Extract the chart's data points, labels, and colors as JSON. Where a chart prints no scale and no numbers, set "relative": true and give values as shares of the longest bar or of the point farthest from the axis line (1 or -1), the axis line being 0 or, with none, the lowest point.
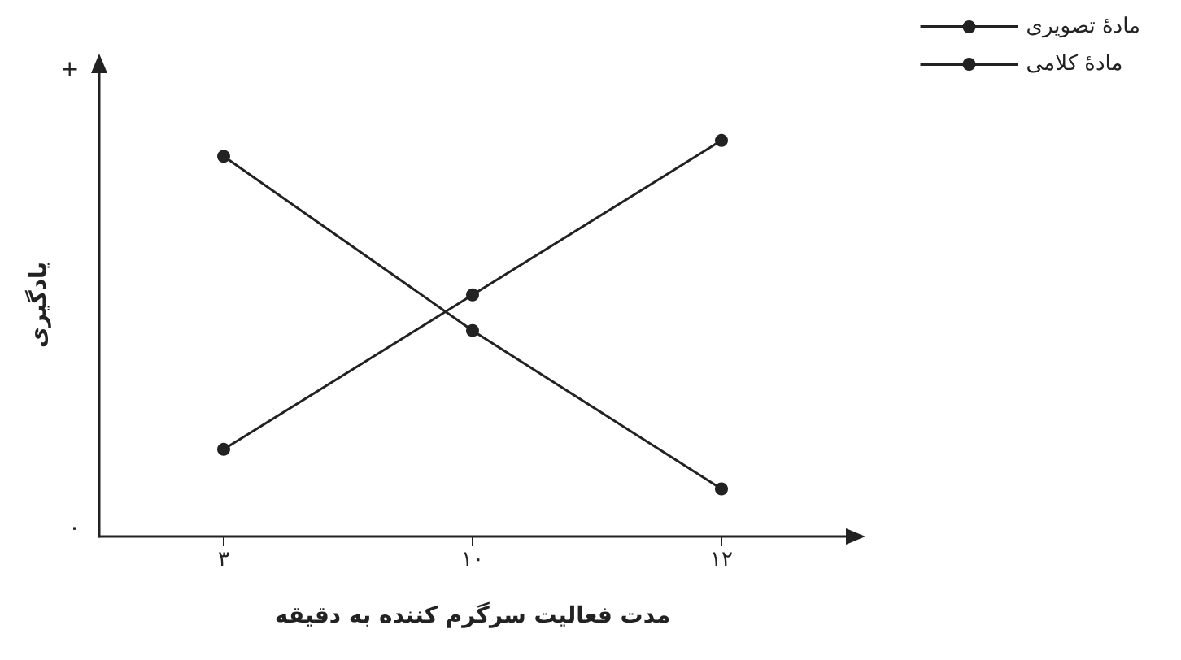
{
  "chart_data": {
    "type": "line",
    "relative": true,
    "xlabel": "مدت فعالیت سرگرم کننده به دقیقه",
    "ylabel": "یادگیری",
    "categories": [
      "۳",
      "۱۰",
      "۱۲"
    ],
    "series": [
      {
        "name": "مادهٔ تصویری",
        "color": "#222222",
        "values": [
          0.22,
          0.61,
          1
        ]
      },
      {
        "name": "مادهٔ کلامی",
        "color": "#222222",
        "values": [
          0.96,
          0.52,
          0.12
        ]
      }
    ],
    "annotations": [
      "+",
      "۰"
    ],
    "marker": "circle",
    "line_style": "solid",
    "legend": "top right",
    "grid": false
  }
}
